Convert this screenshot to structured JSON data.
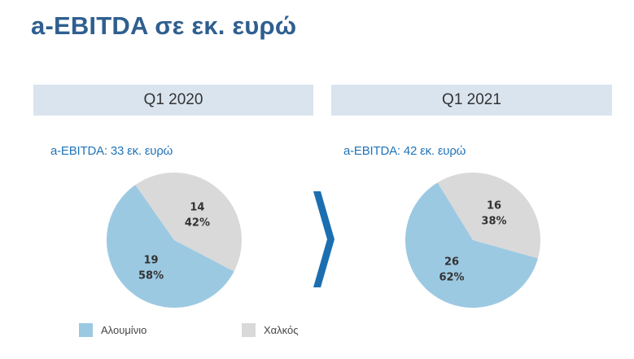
{
  "title": "a-EBITDA σε εκ. ευρώ",
  "colors": {
    "aluminium": "#9cc9e2",
    "copper": "#d9d9d9",
    "accent": "#1f74b8",
    "chevron": "#1b6fb1"
  },
  "legend": [
    {
      "label": "Αλουμίνιο",
      "color": "#9cc9e2"
    },
    {
      "label": "Χαλκός",
      "color": "#d9d9d9"
    }
  ],
  "panels": [
    {
      "header": "Q1 2020",
      "subtitle": "a-EBITDA: 33 εκ. ευρώ"
    },
    {
      "header": "Q1 2021",
      "subtitle": "a-EBITDA: 42 εκ. ευρώ"
    }
  ],
  "chart_data": [
    {
      "type": "pie",
      "title": "Q1 2020",
      "subtitle": "a-EBITDA: 33 εκ. ευρώ",
      "categories": [
        "Αλουμίνιο",
        "Χαλκός"
      ],
      "values": [
        19,
        14
      ],
      "percent_labels": [
        "58%",
        "42%"
      ],
      "colors": [
        "#9cc9e2",
        "#d9d9d9"
      ]
    },
    {
      "type": "pie",
      "title": "Q1 2021",
      "subtitle": "a-EBITDA: 42 εκ. ευρώ",
      "categories": [
        "Αλουμίνιο",
        "Χαλκός"
      ],
      "values": [
        26,
        16
      ],
      "percent_labels": [
        "62%",
        "38%"
      ],
      "colors": [
        "#9cc9e2",
        "#d9d9d9"
      ]
    }
  ]
}
